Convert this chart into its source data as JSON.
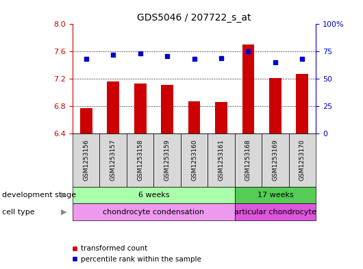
{
  "title": "GDS5046 / 207722_s_at",
  "samples": [
    "GSM1253156",
    "GSM1253157",
    "GSM1253158",
    "GSM1253159",
    "GSM1253160",
    "GSM1253161",
    "GSM1253168",
    "GSM1253169",
    "GSM1253170"
  ],
  "bar_values": [
    6.77,
    7.16,
    7.13,
    7.11,
    6.87,
    6.86,
    7.7,
    7.21,
    7.27
  ],
  "dot_values": [
    68,
    72,
    73,
    71,
    68,
    69,
    75,
    65,
    68
  ],
  "bar_color": "#cc0000",
  "dot_color": "#0000cc",
  "ylim_left": [
    6.4,
    8.0
  ],
  "ylim_right": [
    0,
    100
  ],
  "yticks_left": [
    6.4,
    6.8,
    7.2,
    7.6,
    8.0
  ],
  "yticks_right": [
    0,
    25,
    50,
    75,
    100
  ],
  "ytick_labels_right": [
    "0",
    "25",
    "50",
    "75",
    "100%"
  ],
  "grid_values": [
    6.8,
    7.2,
    7.6
  ],
  "dev_stage_groups": [
    {
      "label": "6 weeks",
      "start": 0,
      "end": 5,
      "color": "#aaffaa"
    },
    {
      "label": "17 weeks",
      "start": 6,
      "end": 8,
      "color": "#55cc55"
    }
  ],
  "cell_type_groups": [
    {
      "label": "chondrocyte condensation",
      "start": 0,
      "end": 5,
      "color": "#ee99ee"
    },
    {
      "label": "articular chondrocyte",
      "start": 6,
      "end": 8,
      "color": "#dd55dd"
    }
  ],
  "dev_stage_label": "development stage",
  "cell_type_label": "cell type",
  "legend_bar_label": "transformed count",
  "legend_dot_label": "percentile rank within the sample",
  "left_axis_color": "#cc0000",
  "right_axis_color": "#0000cc",
  "sample_box_color": "#d8d8d8",
  "n_samples": 9,
  "bar_width": 0.45
}
